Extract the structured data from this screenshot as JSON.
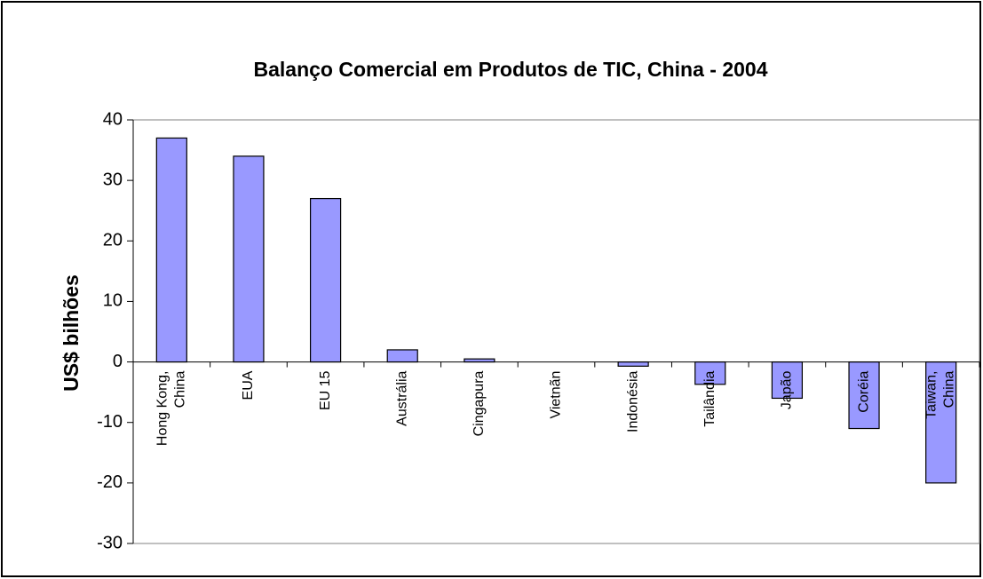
{
  "chart_data": {
    "type": "bar",
    "title": "Balanço Comercial em Produtos de TIC, China - 2004",
    "y_label": "US$ bilhões",
    "categories": [
      "Hong Kong, China",
      "EUA",
      "EU 15",
      "Austrália",
      "Cingapura",
      "Vietnãn",
      "Indonésia",
      "Tailândia",
      "Japão",
      "Coréia",
      "Taiwan, China"
    ],
    "values": [
      37,
      34,
      27,
      2,
      0.5,
      0,
      -0.7,
      -3.7,
      -6,
      -11,
      -20
    ],
    "color": "#9999ff",
    "ylim": [
      -30,
      40
    ],
    "yticks": [
      -30,
      -20,
      -10,
      0,
      10,
      20,
      30,
      40
    ],
    "grid": false
  }
}
